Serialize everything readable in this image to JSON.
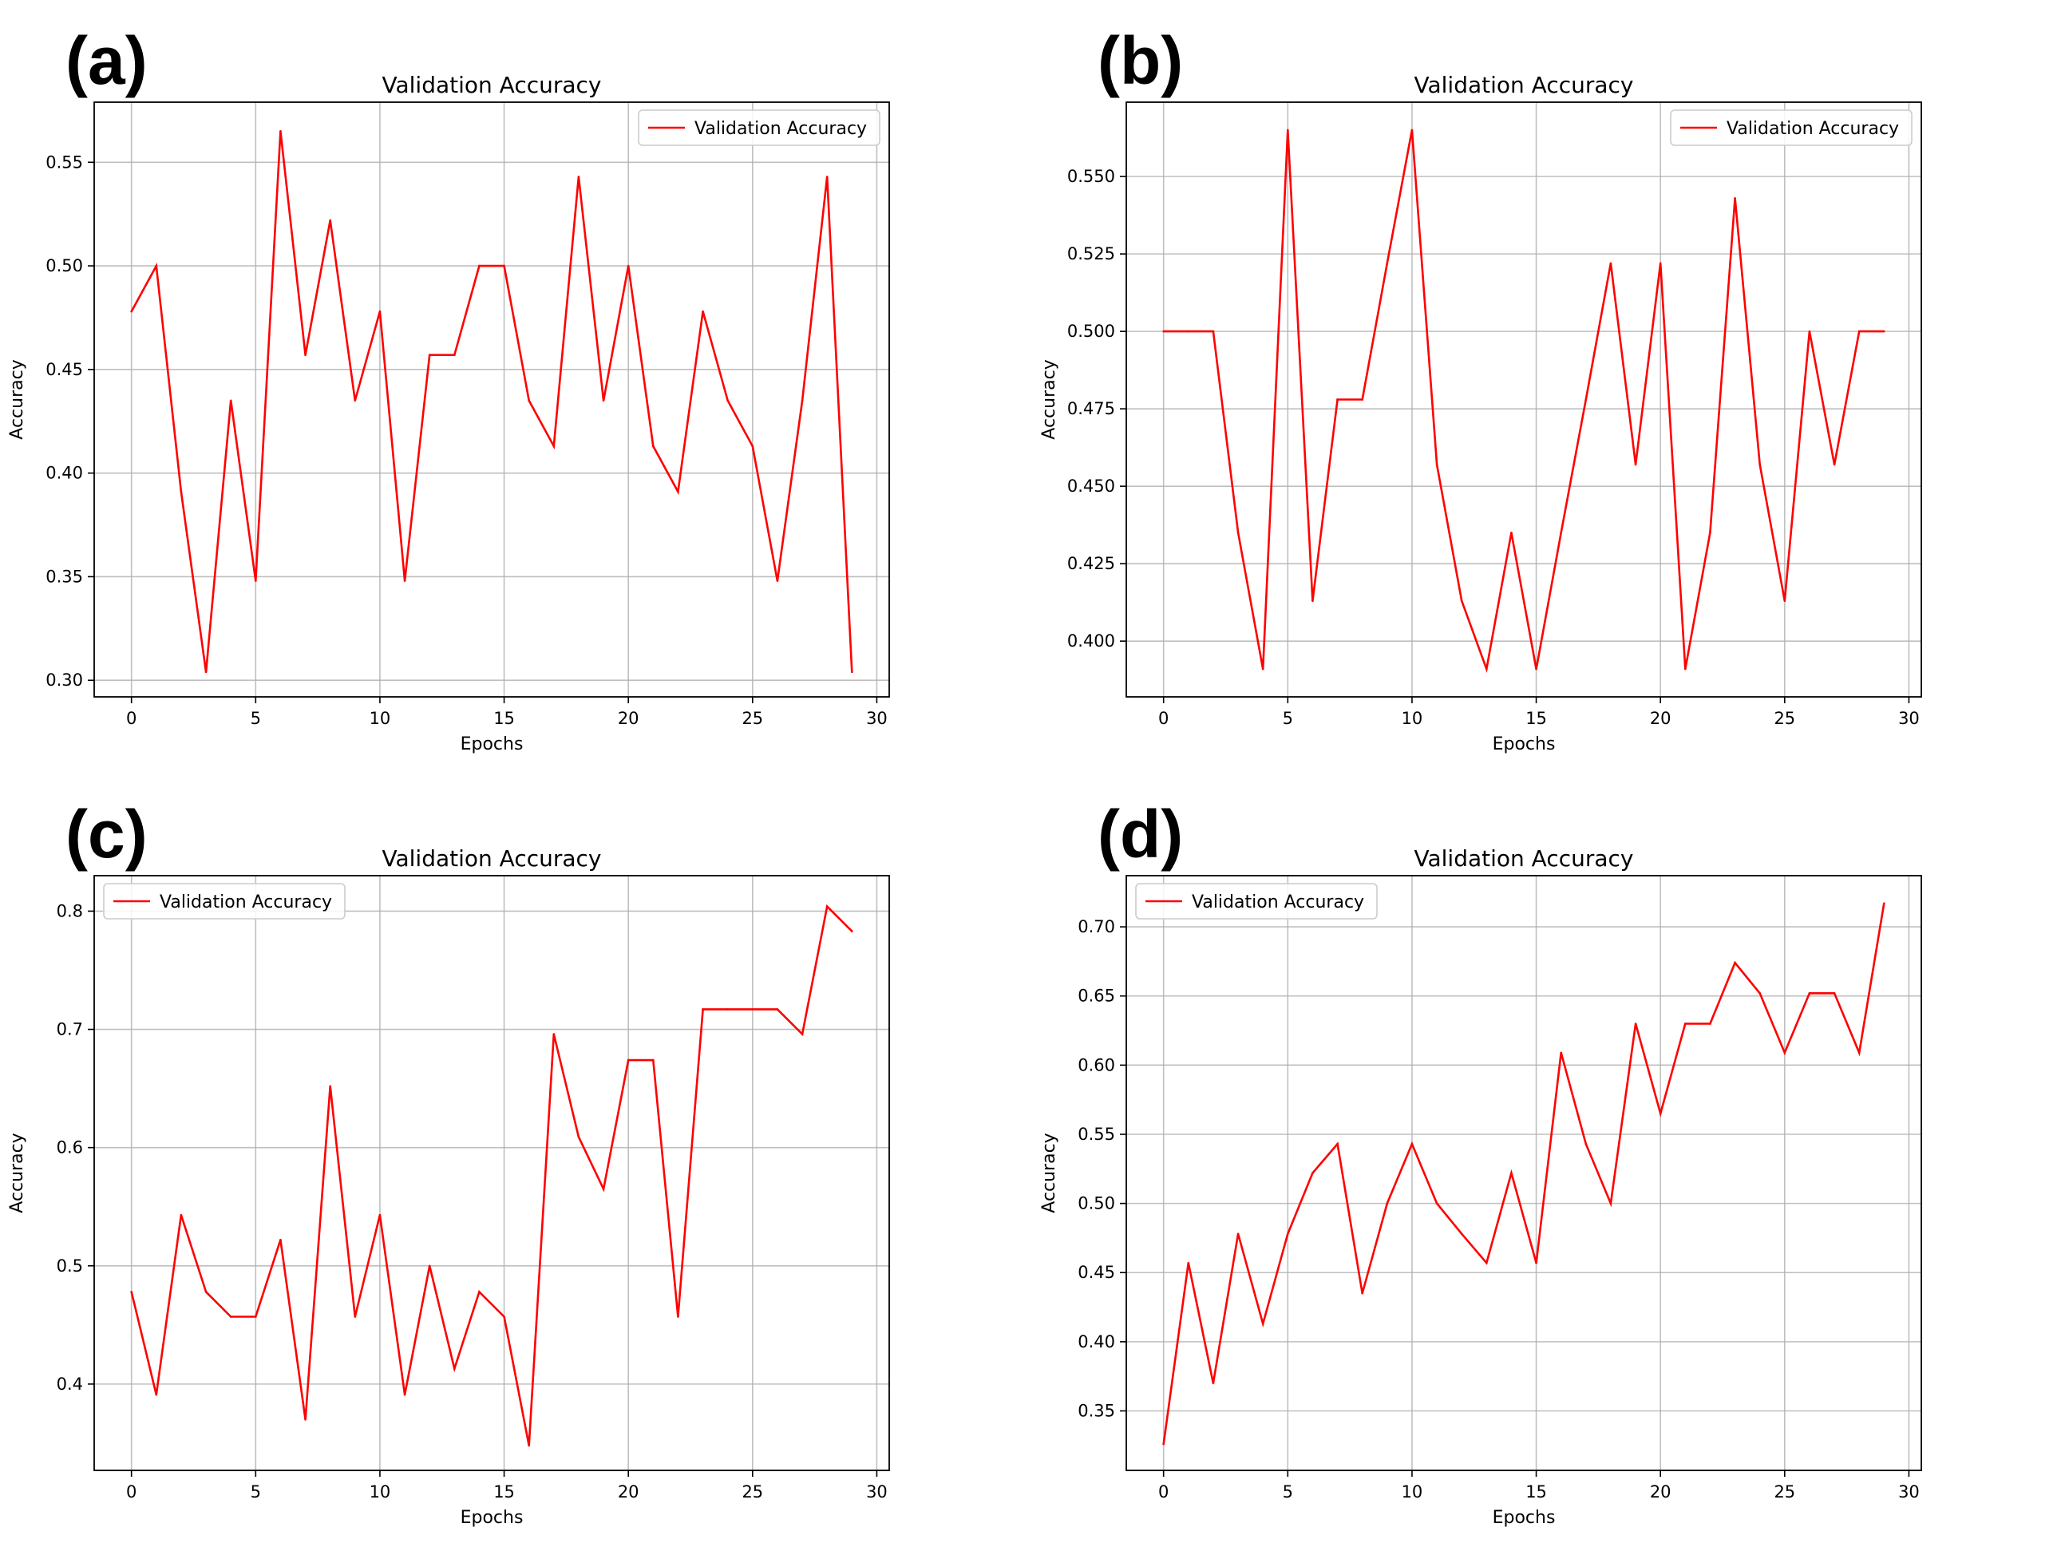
{
  "chart_data": [
    {
      "panel_label": "(a)",
      "type": "line",
      "title": "Validation Accuracy",
      "xlabel": "Epochs",
      "ylabel": "Accuracy",
      "legend": "Validation Accuracy",
      "legend_loc": "upper right",
      "color": "#ff0000",
      "xlim": [
        -1.5,
        30.5
      ],
      "ylim": [
        0.292,
        0.579
      ],
      "xticks": [
        0,
        5,
        10,
        15,
        20,
        25,
        30
      ],
      "yticks": [
        0.3,
        0.35,
        0.4,
        0.45,
        0.5,
        0.55
      ],
      "yticklabels": [
        "0.30",
        "0.35",
        "0.40",
        "0.45",
        "0.50",
        "0.55"
      ],
      "grid": true,
      "x": [
        0,
        1,
        2,
        3,
        4,
        5,
        6,
        7,
        8,
        9,
        10,
        11,
        12,
        13,
        14,
        15,
        16,
        17,
        18,
        19,
        20,
        21,
        22,
        23,
        24,
        25,
        26,
        27,
        28,
        29
      ],
      "values": [
        0.478,
        0.5,
        0.391,
        0.304,
        0.435,
        0.348,
        0.565,
        0.457,
        0.522,
        0.435,
        0.478,
        0.348,
        0.457,
        0.457,
        0.5,
        0.5,
        0.435,
        0.413,
        0.543,
        0.435,
        0.5,
        0.413,
        0.391,
        0.478,
        0.435,
        0.413,
        0.348,
        0.435,
        0.543,
        0.304
      ]
    },
    {
      "panel_label": "(b)",
      "type": "line",
      "title": "Validation Accuracy",
      "xlabel": "Epochs",
      "ylabel": "Accuracy",
      "legend": "Validation Accuracy",
      "legend_loc": "upper right",
      "color": "#ff0000",
      "xlim": [
        -1.5,
        30.5
      ],
      "ylim": [
        0.382,
        0.574
      ],
      "xticks": [
        0,
        5,
        10,
        15,
        20,
        25,
        30
      ],
      "yticks": [
        0.4,
        0.425,
        0.45,
        0.475,
        0.5,
        0.525,
        0.55
      ],
      "yticklabels": [
        "0.400",
        "0.425",
        "0.450",
        "0.475",
        "0.500",
        "0.525",
        "0.550"
      ],
      "grid": true,
      "x": [
        0,
        1,
        2,
        3,
        4,
        5,
        6,
        7,
        8,
        9,
        10,
        11,
        12,
        13,
        14,
        15,
        16,
        17,
        18,
        19,
        20,
        21,
        22,
        23,
        24,
        25,
        26,
        27,
        28,
        29
      ],
      "values": [
        0.5,
        0.5,
        0.5,
        0.435,
        0.391,
        0.565,
        0.413,
        0.478,
        0.478,
        0.522,
        0.565,
        0.457,
        0.413,
        0.391,
        0.435,
        0.391,
        0.435,
        0.478,
        0.522,
        0.457,
        0.522,
        0.391,
        0.435,
        0.543,
        0.457,
        0.413,
        0.5,
        0.457,
        0.5,
        0.5
      ]
    },
    {
      "panel_label": "(c)",
      "type": "line",
      "title": "Validation Accuracy",
      "xlabel": "Epochs",
      "ylabel": "Accuracy",
      "legend": "Validation Accuracy",
      "legend_loc": "upper left",
      "color": "#ff0000",
      "xlim": [
        -1.5,
        30.5
      ],
      "ylim": [
        0.327,
        0.83
      ],
      "xticks": [
        0,
        5,
        10,
        15,
        20,
        25,
        30
      ],
      "yticks": [
        0.4,
        0.5,
        0.6,
        0.7,
        0.8
      ],
      "yticklabels": [
        "0.4",
        "0.5",
        "0.6",
        "0.7",
        "0.8"
      ],
      "grid": true,
      "x": [
        0,
        1,
        2,
        3,
        4,
        5,
        6,
        7,
        8,
        9,
        10,
        11,
        12,
        13,
        14,
        15,
        16,
        17,
        18,
        19,
        20,
        21,
        22,
        23,
        24,
        25,
        26,
        27,
        28,
        29
      ],
      "values": [
        0.478,
        0.391,
        0.543,
        0.478,
        0.457,
        0.457,
        0.522,
        0.37,
        0.652,
        0.457,
        0.543,
        0.391,
        0.5,
        0.413,
        0.478,
        0.457,
        0.348,
        0.696,
        0.609,
        0.565,
        0.674,
        0.674,
        0.457,
        0.717,
        0.717,
        0.717,
        0.717,
        0.696,
        0.804,
        0.783
      ]
    },
    {
      "panel_label": "(d)",
      "type": "line",
      "title": "Validation Accuracy",
      "xlabel": "Epochs",
      "ylabel": "Accuracy",
      "legend": "Validation Accuracy",
      "legend_loc": "upper left",
      "color": "#ff0000",
      "xlim": [
        -1.5,
        30.5
      ],
      "ylim": [
        0.307,
        0.737
      ],
      "xticks": [
        0,
        5,
        10,
        15,
        20,
        25,
        30
      ],
      "yticks": [
        0.35,
        0.4,
        0.45,
        0.5,
        0.55,
        0.6,
        0.65,
        0.7
      ],
      "yticklabels": [
        "0.35",
        "0.40",
        "0.45",
        "0.50",
        "0.55",
        "0.60",
        "0.65",
        "0.70"
      ],
      "grid": true,
      "x": [
        0,
        1,
        2,
        3,
        4,
        5,
        6,
        7,
        8,
        9,
        10,
        11,
        12,
        13,
        14,
        15,
        16,
        17,
        18,
        19,
        20,
        21,
        22,
        23,
        24,
        25,
        26,
        27,
        28,
        29
      ],
      "values": [
        0.326,
        0.457,
        0.37,
        0.478,
        0.413,
        0.478,
        0.522,
        0.543,
        0.435,
        0.5,
        0.543,
        0.5,
        0.478,
        0.457,
        0.522,
        0.457,
        0.609,
        0.543,
        0.5,
        0.63,
        0.565,
        0.63,
        0.63,
        0.674,
        0.652,
        0.609,
        0.652,
        0.652,
        0.609,
        0.717
      ]
    }
  ]
}
